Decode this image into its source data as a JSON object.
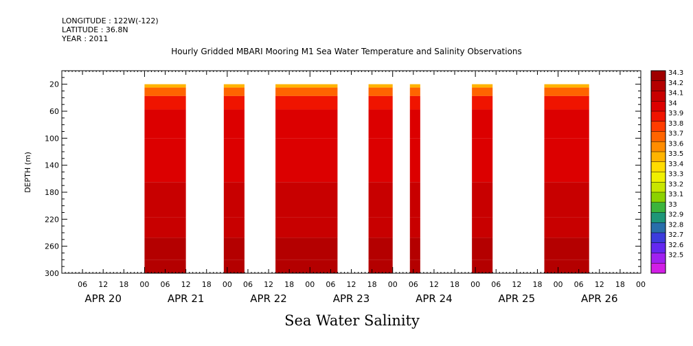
{
  "header": {
    "longitude": "LONGITUDE : 122W(-122)",
    "latitude": "LATITUDE : 36.8N",
    "year": "YEAR : 2011"
  },
  "chart_data": {
    "type": "heatmap",
    "title": "Hourly Gridded MBARI Mooring M1 Sea Water Temperature and Salinity Observations",
    "xlabel": "Sea Water Salinity",
    "ylabel": "DEPTH (m)",
    "x_axis": {
      "unit": "hours since APR 20 00:00",
      "range_hours": [
        0,
        168
      ],
      "hour_tick_labels": [
        "06",
        "12",
        "18",
        "00"
      ],
      "day_labels": [
        "APR 20",
        "APR 21",
        "APR 22",
        "APR 23",
        "APR 24",
        "APR 25",
        "APR 26"
      ]
    },
    "y_axis": {
      "range": [
        300,
        0
      ],
      "tick_values": [
        20,
        60,
        100,
        140,
        180,
        220,
        260,
        300
      ]
    },
    "colorbar": {
      "levels": [
        "34.3",
        "34.2",
        "34.1",
        "34",
        "33.9",
        "33.8",
        "33.7",
        "33.6",
        "33.5",
        "33.4",
        "33.3",
        "33.2",
        "33.1",
        "33",
        "32.9",
        "32.8",
        "32.7",
        "32.6",
        "32.5"
      ],
      "colors": [
        "#a00000",
        "#b40000",
        "#c80000",
        "#dc0000",
        "#f01400",
        "#ff3c00",
        "#ff6400",
        "#ff8c00",
        "#ffb400",
        "#ffdc00",
        "#f0f000",
        "#c8e600",
        "#8cd200",
        "#3cb43c",
        "#1e9678",
        "#286eaa",
        "#3c3cdc",
        "#6428f0",
        "#a020f0",
        "#d21ee6"
      ]
    },
    "data_segments": [
      {
        "start": "APR 21 00:00",
        "end": "APR 21 12:00",
        "x_hours": [
          24,
          36
        ]
      },
      {
        "start": "APR 21 23:00",
        "end": "APR 22 05:00",
        "x_hours": [
          47,
          53
        ]
      },
      {
        "start": "APR 22 14:00",
        "end": "APR 23 08:00",
        "x_hours": [
          62,
          80
        ]
      },
      {
        "start": "APR 23 17:00",
        "end": "APR 24 00:00",
        "x_hours": [
          89,
          96
        ]
      },
      {
        "start": "APR 24 05:00",
        "end": "APR 24 08:00",
        "x_hours": [
          101,
          104
        ]
      },
      {
        "start": "APR 24 23:00",
        "end": "APR 25 05:00",
        "x_hours": [
          119,
          125
        ]
      },
      {
        "start": "APR 25 20:00",
        "end": "APR 26 09:00",
        "x_hours": [
          140,
          153
        ]
      }
    ],
    "salinity_profile": [
      {
        "depth": 20,
        "salinity": 33.5
      },
      {
        "depth": 30,
        "salinity": 33.75
      },
      {
        "depth": 45,
        "salinity": 33.9
      },
      {
        "depth": 70,
        "salinity": 34.0
      },
      {
        "depth": 130,
        "salinity": 34.05
      },
      {
        "depth": 200,
        "salinity": 34.1
      },
      {
        "depth": 235,
        "salinity": 34.15
      },
      {
        "depth": 260,
        "salinity": 34.25
      },
      {
        "depth": 300,
        "salinity": 34.2
      }
    ],
    "grid": false,
    "legend": "right colorbar"
  }
}
